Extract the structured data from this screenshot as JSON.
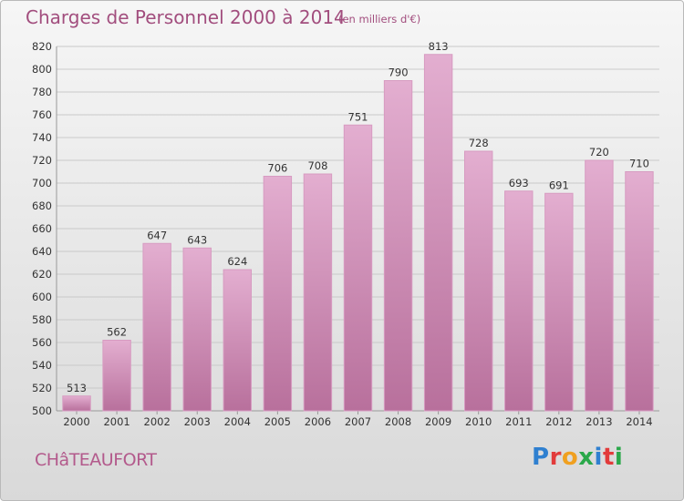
{
  "header": {
    "title": "Charges de Personnel 2000 à 2014",
    "subtitle": "(en milliers d'€)"
  },
  "footer": {
    "commune": "CHâTEAUFORT",
    "logo": {
      "letters": [
        "P",
        "r",
        "o",
        "x",
        "i",
        "t",
        "i"
      ],
      "colors": [
        "#2f80d0",
        "#e23b3b",
        "#f0a020",
        "#2aa84a",
        "#2f80d0",
        "#e23b3b",
        "#2aa84a"
      ]
    }
  },
  "colors": {
    "bar_top": "#e3aed0",
    "bar_bottom": "#b8709c",
    "bar_stroke": "#d79bc1",
    "grid": "#c9c9c9",
    "text": "#333333"
  },
  "chart_data": {
    "type": "bar",
    "title": "Charges de Personnel 2000 à 2014",
    "subtitle": "(en milliers d'€)",
    "categories": [
      "2000",
      "2001",
      "2002",
      "2003",
      "2004",
      "2005",
      "2006",
      "2007",
      "2008",
      "2009",
      "2010",
      "2011",
      "2012",
      "2013",
      "2014"
    ],
    "values": [
      513,
      562,
      647,
      643,
      624,
      706,
      708,
      751,
      790,
      813,
      728,
      693,
      691,
      720,
      710
    ],
    "ylim": [
      500,
      820
    ],
    "yticks": [
      500,
      520,
      540,
      560,
      580,
      600,
      620,
      640,
      660,
      680,
      700,
      720,
      740,
      760,
      780,
      800,
      820
    ],
    "grid": true,
    "data_labels": true
  }
}
